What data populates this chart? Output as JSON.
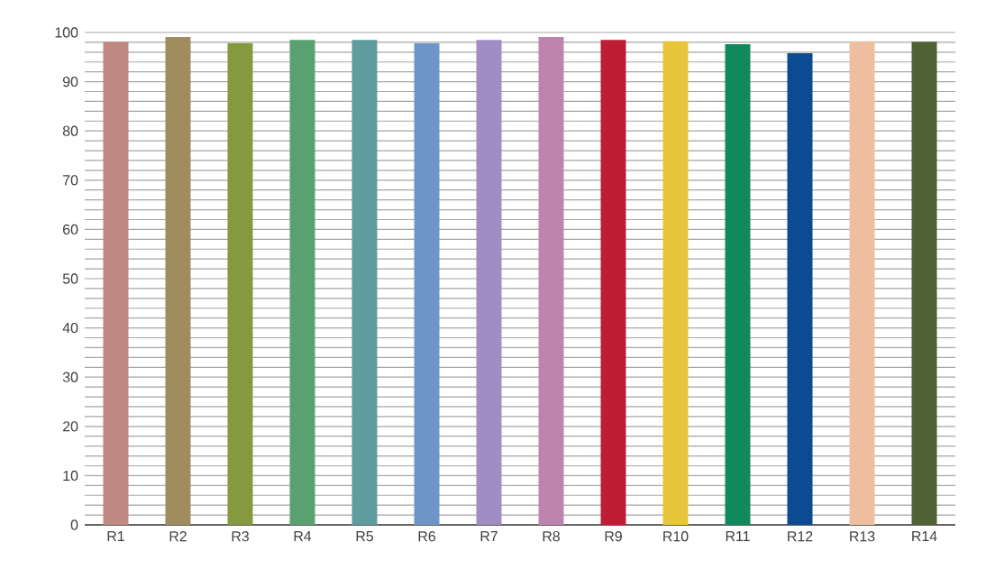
{
  "chart_data": {
    "type": "bar",
    "categories": [
      "R1",
      "R2",
      "R3",
      "R4",
      "R5",
      "R6",
      "R7",
      "R8",
      "R9",
      "R10",
      "R11",
      "R12",
      "R13",
      "R14"
    ],
    "values": [
      98.1,
      99.1,
      97.8,
      98.5,
      98.5,
      97.8,
      98.5,
      99.1,
      98.5,
      98.2,
      97.6,
      95.8,
      98.2,
      98.1
    ],
    "colors": [
      "#bf8880",
      "#a08c5c",
      "#85993f",
      "#5aa172",
      "#5e9c9e",
      "#6d95c7",
      "#a28cc4",
      "#be84ae",
      "#be1e34",
      "#e8c53a",
      "#108a5c",
      "#0c4b91",
      "#eebf9f",
      "#506234"
    ],
    "ylim": [
      0,
      100
    ],
    "yticks": [
      0,
      10,
      20,
      30,
      40,
      50,
      60,
      70,
      80,
      90,
      100
    ],
    "grid": "y"
  }
}
